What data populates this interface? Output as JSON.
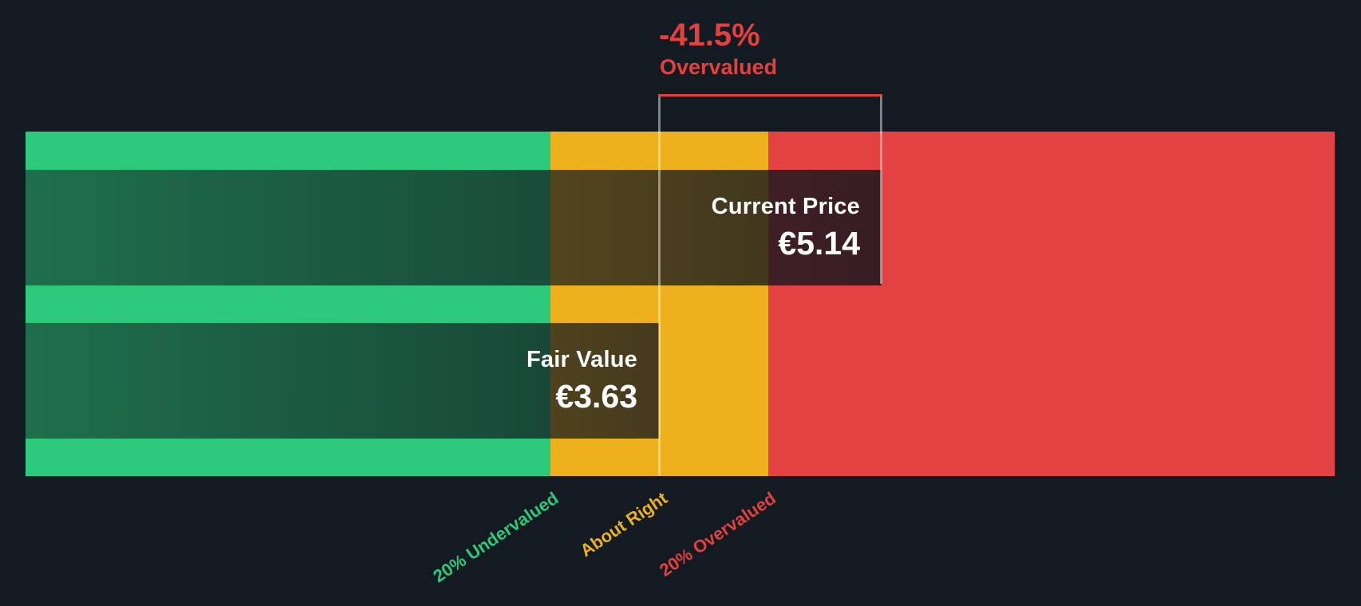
{
  "header": {
    "change_percent": "-41.5%",
    "status_label": "Overvalued"
  },
  "current_price": {
    "label": "Current Price",
    "value": "€5.14"
  },
  "fair_value": {
    "label": "Fair Value",
    "value": "€3.63"
  },
  "colors": {
    "background": "#141A22",
    "undervalued_green": "#2DC97A",
    "about_right_yellow": "#ECB11D",
    "overvalued_red": "#E44242",
    "annotation_red": "#E4403E",
    "marker_text": "#FFFFFF"
  },
  "chart_data": {
    "type": "bar",
    "title": "Share price vs fair value gauge",
    "annotation": "-41.5% Overvalued",
    "discount_percent": -41.5,
    "series": [
      {
        "name": "Current Price",
        "value": 5.14,
        "currency_symbol": "€"
      },
      {
        "name": "Fair Value",
        "value": 3.63,
        "currency_symbol": "€"
      }
    ],
    "zones": [
      {
        "label": "20% Undervalued",
        "color": "#2DC97A",
        "x_fraction_start": 0.0,
        "x_fraction_end": 0.401
      },
      {
        "label": "About Right",
        "color": "#ECB11D",
        "x_fraction_start": 0.401,
        "x_fraction_end": 0.567
      },
      {
        "label": "20% Overvalued",
        "color": "#E44242",
        "x_fraction_start": 0.567,
        "x_fraction_end": 1.0
      }
    ],
    "layout": {
      "orientation": "horizontal",
      "fair_value_x_fraction": 0.484,
      "current_price_x_fraction": 0.654,
      "grid": "off",
      "legend": "off"
    }
  }
}
